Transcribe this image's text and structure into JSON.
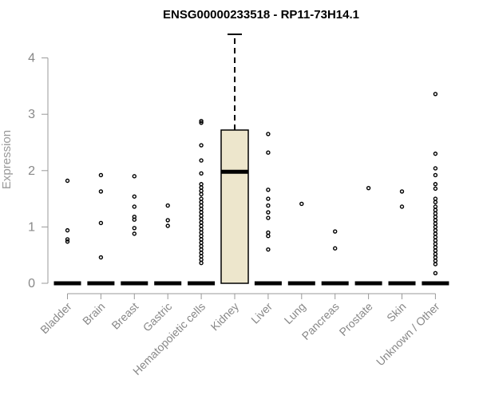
{
  "chart_data": {
    "type": "boxplot",
    "title": "ENSG00000233518 - RP11-73H14.1",
    "xlabel": "",
    "ylabel": "Expression",
    "ylim": [
      0,
      4.5
    ],
    "yticks": [
      0,
      1,
      2,
      3,
      4
    ],
    "categories": [
      "Bladder",
      "Brain",
      "Breast",
      "Gastric",
      "Hematopoietic cells",
      "Kidney",
      "Liver",
      "Lung",
      "Pancreas",
      "Prostate",
      "Skin",
      "Unknown / Other"
    ],
    "box_fill": "#ede6cc",
    "boxes": [
      {
        "category": "Bladder",
        "q1": 0,
        "median": 0,
        "q3": 0,
        "whisker_low": 0,
        "whisker_high": 0,
        "outliers": [
          1.82,
          0.94,
          0.78,
          0.74
        ]
      },
      {
        "category": "Brain",
        "q1": 0,
        "median": 0,
        "q3": 0,
        "whisker_low": 0,
        "whisker_high": 0,
        "outliers": [
          1.92,
          1.63,
          1.07,
          0.46
        ]
      },
      {
        "category": "Breast",
        "q1": 0,
        "median": 0,
        "q3": 0,
        "whisker_low": 0,
        "whisker_high": 0,
        "outliers": [
          1.9,
          1.54,
          1.36,
          1.18,
          1.13,
          0.98,
          0.88
        ]
      },
      {
        "category": "Gastric",
        "q1": 0,
        "median": 0,
        "q3": 0,
        "whisker_low": 0,
        "whisker_high": 0,
        "outliers": [
          1.38,
          1.12,
          1.02
        ]
      },
      {
        "category": "Hematopoietic cells",
        "q1": 0,
        "median": 0,
        "q3": 0,
        "whisker_low": 0,
        "whisker_high": 0,
        "outliers": [
          2.88,
          2.85,
          2.45,
          2.18,
          1.95,
          1.76,
          1.7,
          1.64,
          1.58,
          1.5,
          1.44,
          1.38,
          1.32,
          1.26,
          1.2,
          1.14,
          1.08,
          1.02,
          0.96,
          0.9,
          0.84,
          0.78,
          0.72,
          0.66,
          0.6,
          0.54,
          0.48,
          0.42,
          0.36
        ]
      },
      {
        "category": "Kidney",
        "q1": 0,
        "median": 1.98,
        "q3": 2.72,
        "whisker_low": 0,
        "whisker_high": 4.42,
        "outliers": []
      },
      {
        "category": "Liver",
        "q1": 0,
        "median": 0,
        "q3": 0,
        "whisker_low": 0,
        "whisker_high": 0,
        "outliers": [
          2.65,
          2.32,
          1.66,
          1.5,
          1.38,
          1.26,
          1.16,
          0.9,
          0.84,
          0.6
        ]
      },
      {
        "category": "Lung",
        "q1": 0,
        "median": 0,
        "q3": 0,
        "whisker_low": 0,
        "whisker_high": 0,
        "outliers": [
          1.41
        ]
      },
      {
        "category": "Pancreas",
        "q1": 0,
        "median": 0,
        "q3": 0,
        "whisker_low": 0,
        "whisker_high": 0,
        "outliers": [
          0.92,
          0.62
        ]
      },
      {
        "category": "Prostate",
        "q1": 0,
        "median": 0,
        "q3": 0,
        "whisker_low": 0,
        "whisker_high": 0,
        "outliers": [
          1.69
        ]
      },
      {
        "category": "Skin",
        "q1": 0,
        "median": 0,
        "q3": 0,
        "whisker_low": 0,
        "whisker_high": 0,
        "outliers": [
          1.63,
          1.36
        ]
      },
      {
        "category": "Unknown / Other",
        "q1": 0,
        "median": 0,
        "q3": 0,
        "whisker_low": 0,
        "whisker_high": 0,
        "outliers": [
          3.36,
          2.3,
          2.04,
          1.92,
          1.76,
          1.68,
          1.5,
          1.44,
          1.36,
          1.3,
          1.24,
          1.18,
          1.12,
          1.06,
          1.0,
          0.94,
          0.88,
          0.82,
          0.76,
          0.7,
          0.64,
          0.58,
          0.52,
          0.46,
          0.4,
          0.34,
          0.18
        ]
      }
    ]
  }
}
